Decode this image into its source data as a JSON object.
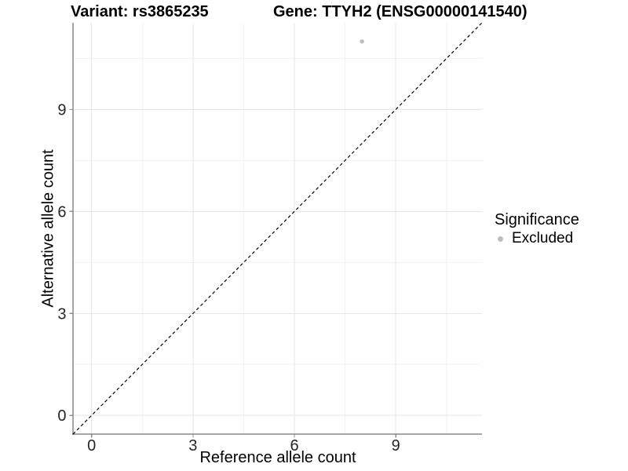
{
  "header": {
    "variant_title": "Variant: rs3865235",
    "gene_title": "Gene: TTYH2 (ENSG00000141540)"
  },
  "axes": {
    "x_label": "Reference allele count",
    "y_label": "Alternative allele count"
  },
  "legend": {
    "title": "Significance",
    "items": [
      {
        "label": "Excluded",
        "color": "#bebebe",
        "marker": "circle-icon"
      }
    ]
  },
  "chart_data": {
    "type": "scatter",
    "title": "Variant: rs3865235 | Gene: TTYH2 (ENSG00000141540)",
    "xlabel": "Reference allele count",
    "ylabel": "Alternative allele count",
    "xlim": [
      -0.55,
      11.55
    ],
    "ylim": [
      -0.55,
      11.55
    ],
    "x_ticks": [
      0,
      3,
      6,
      9
    ],
    "y_ticks": [
      0,
      3,
      6,
      9
    ],
    "x_minor_ticks": [
      1.5,
      4.5,
      7.5,
      10.5
    ],
    "y_minor_ticks": [
      1.5,
      4.5,
      7.5,
      10.5
    ],
    "grid": "major+minor",
    "legend_position": "right",
    "series": [
      {
        "name": "Excluded",
        "color": "#bebebe",
        "points": [
          {
            "x": 8,
            "y": 11
          }
        ]
      }
    ],
    "reference_line": {
      "kind": "identity y=x",
      "slope": 1,
      "intercept": 0,
      "style": "dashed",
      "color": "#000000"
    }
  },
  "colors": {
    "background": "#ffffff",
    "axis_line": "#4d4d4d",
    "tick_mark": "#8c8c8c",
    "grid_major": "#e6e6e6",
    "grid_minor": "#f2f2f2",
    "tick_label": "#262626",
    "dashed_line": "#000000",
    "excluded_point": "#bebebe"
  }
}
